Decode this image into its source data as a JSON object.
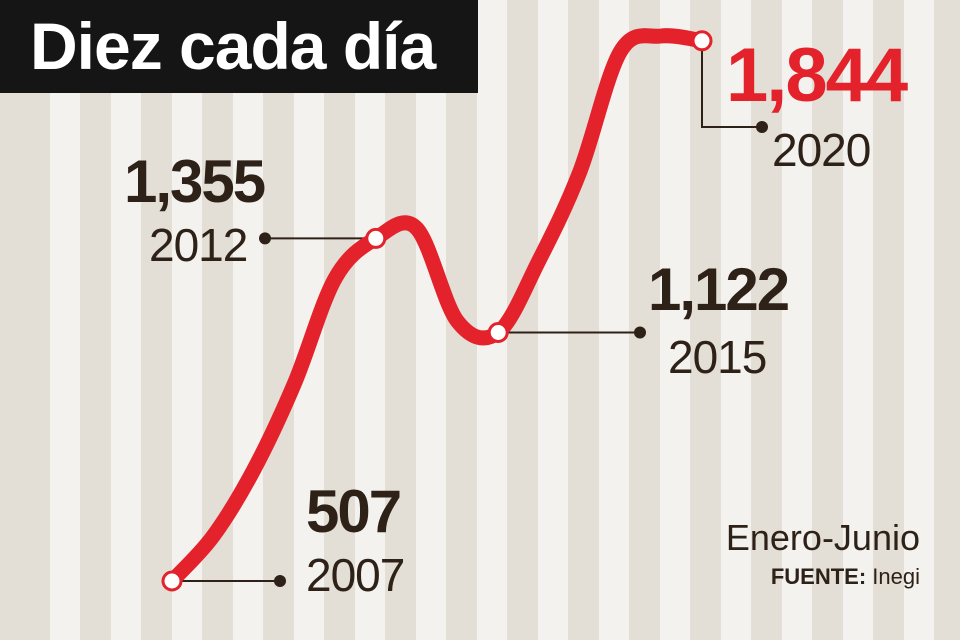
{
  "title": "Diez cada día",
  "period_label": "Enero-Junio",
  "source_label": "FUENTE:",
  "source_value": "Inegi",
  "colors": {
    "line": "#e3222b",
    "highlight": "#e3222b",
    "text": "#2e2118",
    "title_bg": "#151515",
    "stripe_light": "#f4f2ee",
    "stripe_dark": "#e3ded6"
  },
  "chart_data": {
    "type": "line",
    "x": [
      2007,
      2008,
      2009,
      2010,
      2011,
      2012,
      2013,
      2014,
      2015,
      2016,
      2017,
      2018,
      2019,
      2020
    ],
    "series": [
      {
        "values": [
          507,
          617,
          781,
          995,
          1256,
          1355,
          1380,
          1150,
          1122,
          1300,
          1519,
          1818,
          1856,
          1844
        ]
      }
    ],
    "labeled_points": [
      {
        "year": "2007",
        "value": "507"
      },
      {
        "year": "2012",
        "value": "1,355"
      },
      {
        "year": "2015",
        "value": "1,122"
      },
      {
        "year": "2020",
        "value": "1,844",
        "highlight": true
      }
    ],
    "xlim": [
      2007,
      2020
    ],
    "ylim": [
      507,
      1856
    ],
    "grid": false,
    "title": "Diez cada día",
    "xlabel": "",
    "ylabel": ""
  }
}
